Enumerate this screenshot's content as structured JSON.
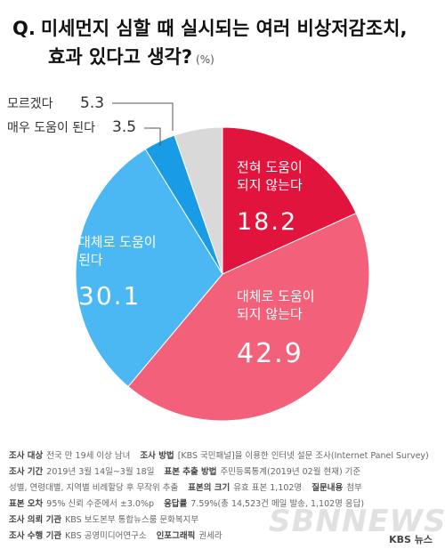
{
  "title": {
    "q_prefix": "Q.",
    "line1": "미세먼지 심할 때 실시되는 여러 비상저감조치,",
    "line2": "효과 있다고 생각?",
    "unit": "(%)"
  },
  "chart_data": {
    "type": "pie",
    "unit": "(%)",
    "slices": [
      {
        "label": "전혀 도움이 되지 않는다",
        "label_lines": [
          "전혀 도움이",
          "되지 않는다"
        ],
        "value": 18.2,
        "value_text": "18.2",
        "color": "#e0143c"
      },
      {
        "label": "대체로 도움이 되지 않는다",
        "label_lines": [
          "대체로 도움이",
          "되지 않는다"
        ],
        "value": 42.9,
        "value_text": "42.9",
        "color": "#f3607a"
      },
      {
        "label": "대체로 도움이 된다",
        "label_lines": [
          "대체로 도움이",
          "된다"
        ],
        "value": 30.1,
        "value_text": "30.1",
        "color": "#4bb8f4"
      },
      {
        "label": "매우 도움이 된다",
        "label_lines": [],
        "value": 3.5,
        "value_text": "3.5",
        "color": "#1a9be6"
      },
      {
        "label": "모르겠다",
        "label_lines": [],
        "value": 5.3,
        "value_text": "5.3",
        "color": "#d9d9d9"
      }
    ],
    "callouts": [
      {
        "text": "모르겠다",
        "value_text": "5.3"
      },
      {
        "text": "매우 도움이 된다",
        "value_text": "3.5"
      }
    ]
  },
  "notes": {
    "survey_target_key": "조사 대상",
    "survey_target_val": "전국 만 19세 이상 남녀",
    "survey_method_key": "조사 방법",
    "survey_method_val": "[KBS 국민패널]을 이용한 인터넷 설문 조사(Internet Panel Survey)",
    "survey_period_key": "조사 기간",
    "survey_period_val": "2019년 3월 14일~3월 18일",
    "sampling_key": "표본 추출 방법",
    "sampling_val": "주민등록통계(2019년 02월 현재) 기준",
    "sampling_val2": "성별, 연령대별, 지역별 비례할당 후 무작위 추출",
    "sample_size_key": "표본의 크기",
    "sample_size_val": "유효 표본 1,102명",
    "questionnaire_key": "질문내용",
    "questionnaire_val": "첨부",
    "error_key": "표본 오차",
    "error_val": "95% 신뢰 수준에서 ±3.0%p",
    "response_key": "응답률",
    "response_val": "7.59%(총 14,523건 메일 발송, 1,102명 응답)",
    "client_key": "조사 의뢰 기관",
    "client_val": "KBS 보도본부 통합뉴스룸 문화복지부",
    "agency_key": "조사 수행 기관",
    "agency_val": "KBS 공영미디어연구소",
    "infographic_key": "인포그래픽",
    "infographic_val": "권세라"
  },
  "watermark": "SBNNEWS",
  "brand": "KBS 뉴스"
}
